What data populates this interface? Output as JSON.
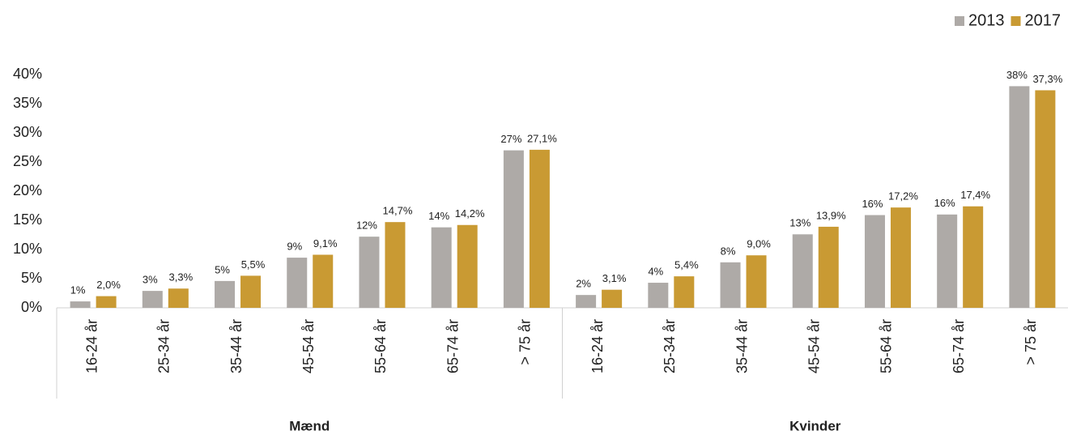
{
  "chart_data": {
    "type": "bar",
    "groups": [
      {
        "name": "Mænd",
        "categories": [
          "16-24 år",
          "25-34 år",
          "35-44 år",
          "45-54 år",
          "55-64 år",
          "65-74 år",
          "> 75 år"
        ]
      },
      {
        "name": "Kvinder",
        "categories": [
          "16-24 år",
          "25-34 år",
          "35-44 år",
          "45-54 år",
          "55-64 år",
          "65-74 år",
          "> 75 år"
        ]
      }
    ],
    "series": [
      {
        "name": "2013",
        "color": "#aeaaa7",
        "values": [
          1.1,
          2.9,
          4.6,
          8.6,
          12.2,
          13.8,
          27.0,
          2.2,
          4.3,
          7.8,
          12.6,
          15.9,
          16.0,
          38.0
        ],
        "value_labels": [
          "1%",
          "3%",
          "5%",
          "9%",
          "12%",
          "14%",
          "27%",
          "2%",
          "4%",
          "8%",
          "13%",
          "16%",
          "16%",
          "38%"
        ]
      },
      {
        "name": "2017",
        "color": "#c99a33",
        "values": [
          2.0,
          3.3,
          5.5,
          9.1,
          14.7,
          14.2,
          27.1,
          3.1,
          5.4,
          9.0,
          13.9,
          17.2,
          17.4,
          37.3
        ],
        "value_labels": [
          "2,0%",
          "3,3%",
          "5,5%",
          "9,1%",
          "14,7%",
          "14,2%",
          "27,1%",
          "3,1%",
          "5,4%",
          "9,0%",
          "13,9%",
          "17,2%",
          "17,4%",
          "37,3%"
        ]
      }
    ],
    "ylim": [
      0,
      40
    ],
    "yticks": [
      {
        "value": 0,
        "label": "0%"
      },
      {
        "value": 5,
        "label": "5%"
      },
      {
        "value": 10,
        "label": "10%"
      },
      {
        "value": 15,
        "label": "15%"
      },
      {
        "value": 20,
        "label": "20%"
      },
      {
        "value": 25,
        "label": "25%"
      },
      {
        "value": 30,
        "label": "30%"
      },
      {
        "value": 35,
        "label": "35%"
      },
      {
        "value": 40,
        "label": "40%"
      }
    ],
    "legend": "top-right"
  }
}
